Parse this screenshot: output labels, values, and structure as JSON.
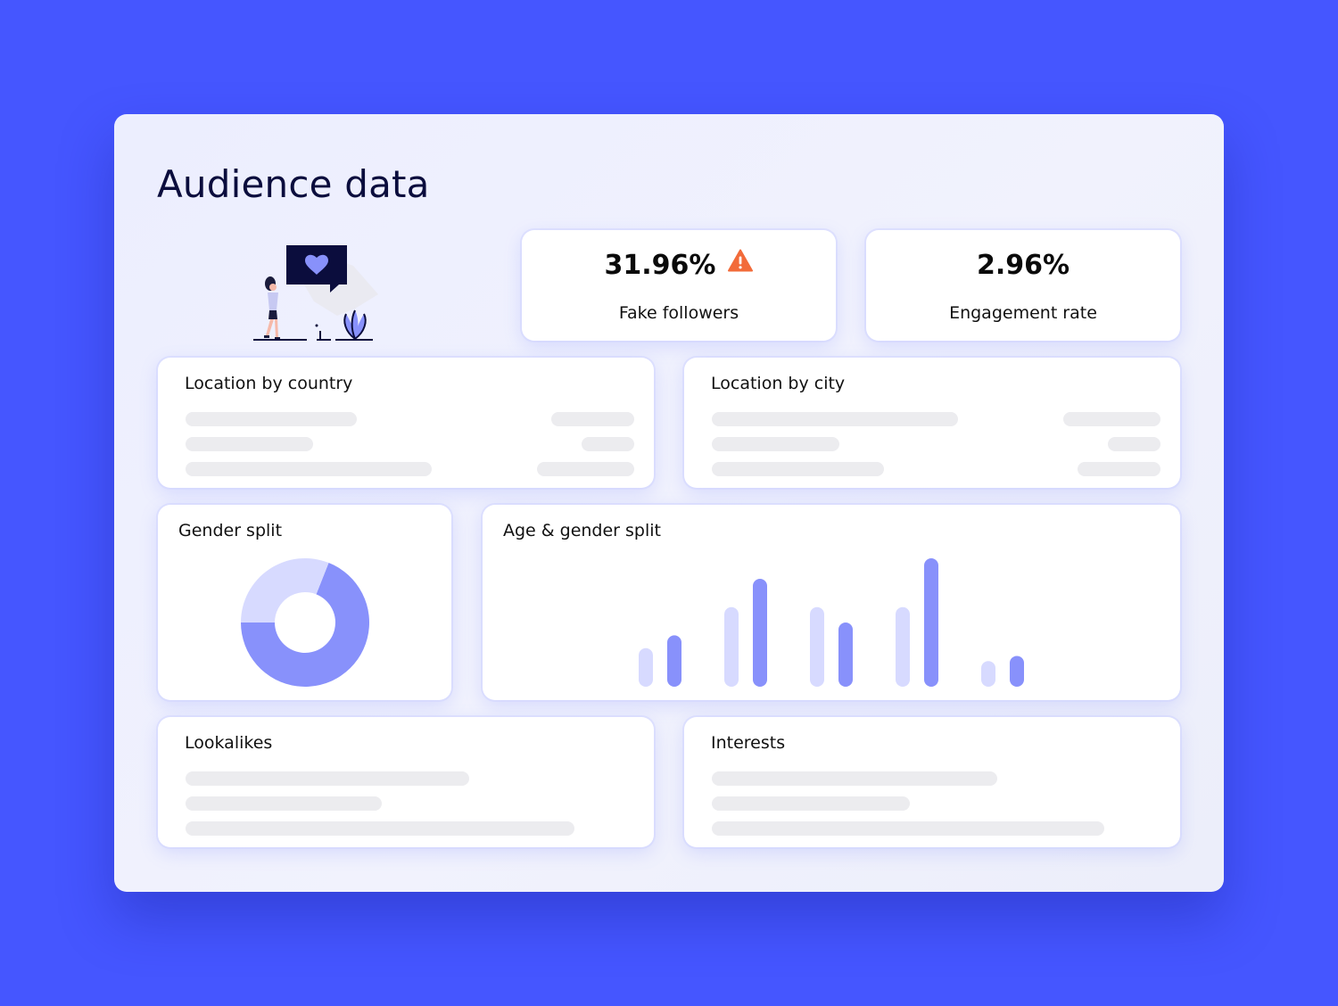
{
  "page": {
    "title": "Audience data"
  },
  "stats": {
    "fake_followers": {
      "value": "31.96%",
      "label": "Fake followers",
      "icon": "warning-icon"
    },
    "engagement": {
      "value": "2.96%",
      "label": "Engagement rate"
    }
  },
  "cards": {
    "location_country": "Location by country",
    "location_city": "Location by city",
    "gender_split": "Gender split",
    "age_gender_split": "Age & gender split",
    "lookalikes": "Lookalikes",
    "interests": "Interests"
  },
  "colors": {
    "background": "#4556ff",
    "accent": "#8891fb",
    "accent_light": "#d7daff",
    "warning": "#f26b3a",
    "skeleton": "#ececef",
    "title": "#0b0d3d"
  },
  "gender_donut": {
    "segments": [
      {
        "share": 0.69,
        "color": "#8891fb"
      },
      {
        "share": 0.31,
        "color": "#d7daff"
      }
    ]
  },
  "age_gender_bars": {
    "groups": [
      {
        "light": 30,
        "dark": 40
      },
      {
        "light": 62,
        "dark": 84
      },
      {
        "light": 62,
        "dark": 50
      },
      {
        "light": 62,
        "dark": 100
      },
      {
        "light": 20,
        "dark": 24
      }
    ]
  }
}
